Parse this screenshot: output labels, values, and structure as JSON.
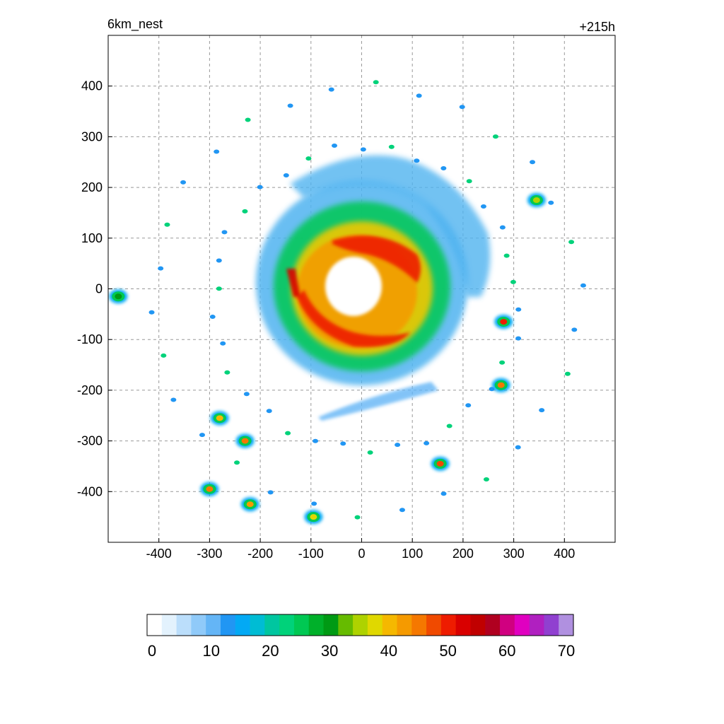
{
  "header": {
    "left_label": "6km_nest",
    "right_label": "+215h"
  },
  "chart_data": {
    "type": "heatmap",
    "title": "",
    "xlabel": "",
    "ylabel": "",
    "xlim": [
      -500,
      500
    ],
    "ylim": [
      -500,
      500
    ],
    "x_ticks": [
      -400,
      -300,
      -200,
      -100,
      0,
      100,
      200,
      300,
      400
    ],
    "y_ticks": [
      400,
      300,
      200,
      100,
      0,
      -100,
      -200,
      -300,
      -400
    ],
    "grid": true,
    "colorbar": {
      "min": 0,
      "max": 70,
      "ticks": [
        0,
        10,
        20,
        30,
        40,
        50,
        60,
        70
      ],
      "colors": [
        "#ffffff",
        "#e3f2fd",
        "#bbdefb",
        "#90caf9",
        "#64b5f6",
        "#2196f3",
        "#03a9f4",
        "#00bcd4",
        "#00c6a0",
        "#00d27a",
        "#00c853",
        "#00b02a",
        "#009a14",
        "#66bb00",
        "#aed200",
        "#e0d800",
        "#f5b800",
        "#f59a00",
        "#f57800",
        "#f04a00",
        "#ee1c00",
        "#d90000",
        "#c00000",
        "#b00020",
        "#d00080",
        "#e000c0",
        "#b020c0",
        "#9040d0",
        "#b090e0"
      ]
    },
    "features": {
      "eye_center": [
        20,
        0
      ],
      "eyewall_max_dbz": 50,
      "outer_bands": [
        {
          "x": 280,
          "y": -65,
          "dbz": 50
        },
        {
          "x": 275,
          "y": -190,
          "dbz": 45
        },
        {
          "x": 155,
          "y": -345,
          "dbz": 48
        },
        {
          "x": -280,
          "y": -255,
          "dbz": 40
        },
        {
          "x": -230,
          "y": -300,
          "dbz": 45
        },
        {
          "x": -300,
          "y": -395,
          "dbz": 45
        },
        {
          "x": -220,
          "y": -425,
          "dbz": 42
        },
        {
          "x": 345,
          "y": 175,
          "dbz": 35
        },
        {
          "x": -480,
          "y": -15,
          "dbz": 30
        },
        {
          "x": -95,
          "y": -450,
          "dbz": 38
        }
      ]
    }
  }
}
